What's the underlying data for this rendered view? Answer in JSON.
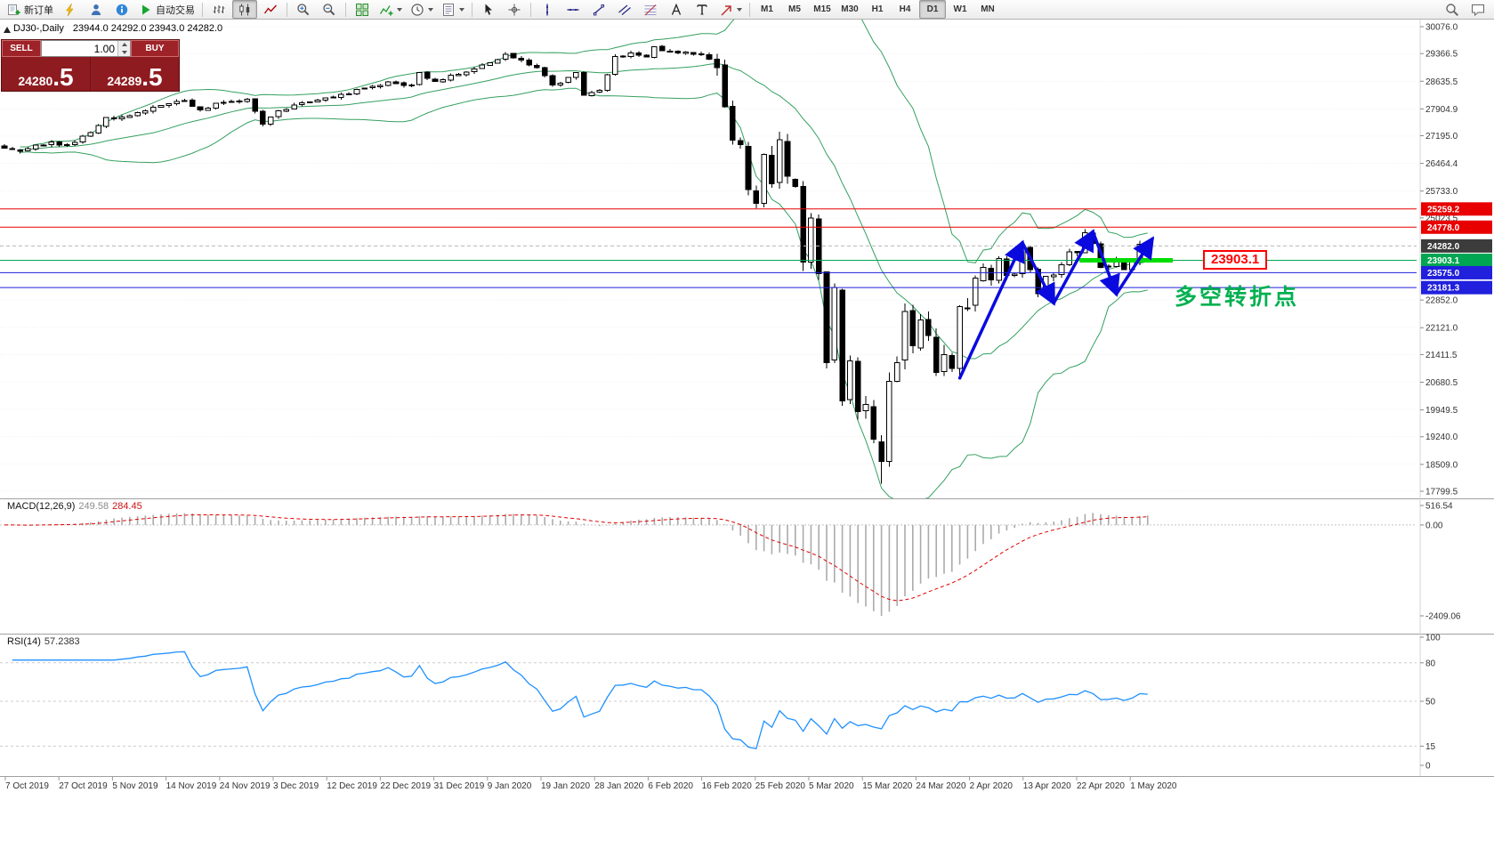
{
  "toolbar": {
    "items": [
      {
        "name": "new-order-button",
        "icon": "neworder",
        "label": "新订单"
      },
      {
        "name": "market-watch-button",
        "icon": "bolt"
      },
      {
        "name": "profile-button",
        "icon": "person"
      },
      {
        "name": "help-button",
        "icon": "info"
      },
      {
        "name": "algo-trading-button",
        "icon": "play",
        "label": "自动交易"
      },
      {
        "type": "sep"
      },
      {
        "name": "bar-chart-button",
        "icon": "bars"
      },
      {
        "name": "candle-chart-button",
        "icon": "candles",
        "active": true
      },
      {
        "name": "line-chart-button",
        "icon": "linechart"
      },
      {
        "type": "sep"
      },
      {
        "name": "zoom-in-button",
        "icon": "zoomin"
      },
      {
        "name": "zoom-out-button",
        "icon": "zoomout"
      },
      {
        "type": "sep"
      },
      {
        "name": "tile-windows-button",
        "icon": "tiles"
      },
      {
        "name": "indicators-button",
        "icon": "indicator",
        "dropdown": true
      },
      {
        "name": "period-menu-button",
        "icon": "clock",
        "dropdown": true
      },
      {
        "name": "templates-button",
        "icon": "template",
        "dropdown": true
      },
      {
        "type": "sep"
      },
      {
        "name": "cursor-button",
        "icon": "cursor"
      },
      {
        "name": "crosshair-button",
        "icon": "crosshair"
      },
      {
        "type": "sep"
      },
      {
        "name": "vertical-line-button",
        "icon": "vline"
      },
      {
        "name": "horizontal-line-button",
        "icon": "hline"
      },
      {
        "name": "trendline-button",
        "icon": "tline"
      },
      {
        "name": "channel-button",
        "icon": "channel"
      },
      {
        "name": "fibonacci-button",
        "icon": "fibo"
      },
      {
        "name": "text-button",
        "icon": "textA"
      },
      {
        "name": "label-button",
        "icon": "textT"
      },
      {
        "name": "arrows-button",
        "icon": "arrowobj",
        "dropdown": true
      },
      {
        "type": "sep"
      },
      {
        "name": "timeframe-button-m1",
        "label": "M1",
        "type": "tf"
      },
      {
        "name": "timeframe-button-m5",
        "label": "M5",
        "type": "tf"
      },
      {
        "name": "timeframe-button-m15",
        "label": "M15",
        "type": "tf"
      },
      {
        "name": "timeframe-button-m30",
        "label": "M30",
        "type": "tf"
      },
      {
        "name": "timeframe-button-h1",
        "label": "H1",
        "type": "tf"
      },
      {
        "name": "timeframe-button-h4",
        "label": "H4",
        "type": "tf"
      },
      {
        "name": "timeframe-button-d1",
        "label": "D1",
        "type": "tf",
        "active": true
      },
      {
        "name": "timeframe-button-w1",
        "label": "W1",
        "type": "tf"
      },
      {
        "name": "timeframe-button-mn",
        "label": "MN",
        "type": "tf"
      },
      {
        "type": "spacer"
      },
      {
        "name": "symbol-search-button",
        "icon": "search"
      },
      {
        "name": "chat-button",
        "icon": "chat"
      }
    ]
  },
  "chart_info": {
    "symbol_period": "DJ30-,Daily",
    "ohlc_values": "23944.0 24292.0 23943.0 24282.0"
  },
  "trade_panel": {
    "sell_label": "SELL",
    "buy_label": "BUY",
    "volume": "1.00",
    "sell_price_main": "24280",
    "sell_price_big": ".5",
    "buy_price_main": "24289",
    "buy_price_big": ".5"
  },
  "price_axis": {
    "grid_labels": [
      "30076.0",
      "29366.5",
      "28635.5",
      "27904.9",
      "27195.0",
      "26464.4",
      "25733.0",
      "25023.5",
      "22852.0",
      "22121.0",
      "21411.5",
      "20680.5",
      "19949.5",
      "19240.0",
      "18509.0",
      "17799.5"
    ],
    "boxed_labels": [
      {
        "text": "25259.2",
        "type": "red-line"
      },
      {
        "text": "24778.0",
        "type": "red-line"
      },
      {
        "text": "24282.0",
        "type": "current"
      },
      {
        "text": "23903.1",
        "type": "green-line"
      },
      {
        "text": "23575.0",
        "type": "blue-line"
      },
      {
        "text": "23181.3",
        "type": "blue-line"
      }
    ]
  },
  "annotations": {
    "level_label": "23903.1",
    "turning_point_text": "多空转折点"
  },
  "macd_panel": {
    "label": "MACD(12,26,9)",
    "value_main": "249.58",
    "value_signal": "284.45",
    "axis": [
      "516.54",
      "0.00",
      "-2409.06"
    ]
  },
  "rsi_panel": {
    "label": "RSI(14)",
    "value": "57.2383",
    "axis": [
      "100",
      "80",
      "50",
      "15",
      "0"
    ]
  },
  "time_axis": {
    "labels": [
      "7 Oct 2019",
      "27 Oct 2019",
      "5 Nov 2019",
      "14 Nov 2019",
      "24 Nov 2019",
      "3 Dec 2019",
      "12 Dec 2019",
      "22 Dec 2019",
      "31 Dec 2019",
      "9 Jan 2020",
      "19 Jan 2020",
      "28 Jan 2020",
      "6 Feb 2020",
      "16 Feb 2020",
      "25 Feb 2020",
      "5 Mar 2020",
      "15 Mar 2020",
      "24 Mar 2020",
      "2 Apr 2020",
      "13 Apr 2020",
      "22 Apr 2020",
      "1 May 2020"
    ]
  },
  "colors": {
    "bull_candle": "#ffffff",
    "bear_candle": "#000000",
    "candle_outline": "#000000",
    "bollinger": "#35a060",
    "macd_histogram": "#ababab",
    "macd_signal": "#e00000",
    "rsi_line": "#1e90ff",
    "level_red": "#e80000",
    "level_blue": "#2020dd",
    "level_green": "#00a651",
    "current_box": "#3c3c3c",
    "highlight_green": "#00dd00",
    "annotation_green": "#00b050",
    "trend_arrow_blue": "#0a0adf",
    "trade_panel_bg": "#8e1b20"
  },
  "chart_data": {
    "type": "candlestick",
    "symbol": "DJ30-",
    "period": "Daily",
    "ohlc_current": {
      "open": 23944.0,
      "high": 24292.0,
      "low": 23943.0,
      "close": 24282.0
    },
    "y_axis_top": 30076.0,
    "y_axis_bottom": 17799.5,
    "candle_count": 147,
    "seed": 13,
    "price_keyframes": [
      [
        0,
        26870
      ],
      [
        2,
        26780
      ],
      [
        4,
        26950
      ],
      [
        6,
        27030
      ],
      [
        8,
        26950
      ],
      [
        10,
        27186
      ],
      [
        12,
        27460
      ],
      [
        13,
        27681
      ],
      [
        15,
        27690
      ],
      [
        18,
        27850
      ],
      [
        21,
        28036
      ],
      [
        23,
        28120
      ],
      [
        25,
        27875
      ],
      [
        27,
        28050
      ],
      [
        29,
        28100
      ],
      [
        31,
        28160
      ],
      [
        33,
        27500
      ],
      [
        35,
        27850
      ],
      [
        37,
        28010
      ],
      [
        40,
        28130
      ],
      [
        43,
        28290
      ],
      [
        46,
        28450
      ],
      [
        49,
        28620
      ],
      [
        52,
        28540
      ],
      [
        53,
        28870
      ],
      [
        55,
        28630
      ],
      [
        58,
        28820
      ],
      [
        60,
        28960
      ],
      [
        62,
        29120
      ],
      [
        64,
        29350
      ],
      [
        66,
        29190
      ],
      [
        68,
        28990
      ],
      [
        70,
        28540
      ],
      [
        72,
        28730
      ],
      [
        73,
        28860
      ],
      [
        74,
        28260
      ],
      [
        76,
        28400
      ],
      [
        78,
        29290
      ],
      [
        80,
        29380
      ],
      [
        82,
        29280
      ],
      [
        83,
        29550
      ],
      [
        85,
        29420
      ],
      [
        87,
        29400
      ],
      [
        89,
        29350
      ],
      [
        90,
        29220
      ],
      [
        91,
        28990
      ],
      [
        92,
        27960
      ],
      [
        93,
        27080
      ],
      [
        94,
        26960
      ],
      [
        95,
        25770
      ],
      [
        96,
        25410
      ],
      [
        97,
        26700
      ],
      [
        98,
        25920
      ],
      [
        99,
        27090
      ],
      [
        100,
        26120
      ],
      [
        101,
        25860
      ],
      [
        102,
        23850
      ],
      [
        103,
        25020
      ],
      [
        104,
        23550
      ],
      [
        105,
        21200
      ],
      [
        106,
        23190
      ],
      [
        107,
        20190
      ],
      [
        108,
        21240
      ],
      [
        109,
        19900
      ],
      [
        110,
        20090
      ],
      [
        111,
        19170
      ],
      [
        112,
        18590
      ],
      [
        113,
        20700
      ],
      [
        114,
        21200
      ],
      [
        115,
        22550
      ],
      [
        116,
        21640
      ],
      [
        117,
        22330
      ],
      [
        118,
        21920
      ],
      [
        119,
        20940
      ],
      [
        120,
        21410
      ],
      [
        121,
        21050
      ],
      [
        122,
        22680
      ],
      [
        123,
        22650
      ],
      [
        124,
        23430
      ],
      [
        125,
        23720
      ],
      [
        126,
        23390
      ],
      [
        127,
        23950
      ],
      [
        128,
        23500
      ],
      [
        129,
        23540
      ],
      [
        130,
        24240
      ],
      [
        131,
        23650
      ],
      [
        132,
        23020
      ],
      [
        133,
        23480
      ],
      [
        134,
        23520
      ],
      [
        135,
        23780
      ],
      [
        136,
        24130
      ],
      [
        137,
        24100
      ],
      [
        138,
        24630
      ],
      [
        139,
        24350
      ],
      [
        140,
        23720
      ],
      [
        141,
        23750
      ],
      [
        142,
        23880
      ],
      [
        143,
        23660
      ],
      [
        144,
        23880
      ],
      [
        145,
        24330
      ],
      [
        146,
        24282
      ]
    ],
    "low_overrides": {
      "112": 18000
    },
    "levels": [
      {
        "value": 25259.2,
        "color": "red"
      },
      {
        "value": 24778.0,
        "color": "red"
      },
      {
        "value": 23903.1,
        "color": "green"
      },
      {
        "value": 23575.0,
        "color": "blue"
      },
      {
        "value": 23181.3,
        "color": "blue"
      }
    ],
    "current_price": 24282.0,
    "bollinger": {
      "period": 20,
      "deviation": 2
    },
    "macd": {
      "fast": 12,
      "slow": 26,
      "signal": 9,
      "display_max": 516.54,
      "display_min": -2409.06
    },
    "rsi": {
      "period": 14,
      "levels": [
        80,
        50,
        15
      ]
    },
    "trend_arrows": [
      [
        122,
        20790,
        130,
        24370
      ],
      [
        130,
        24370,
        134,
        22770
      ],
      [
        134,
        22770,
        139,
        24660
      ],
      [
        139,
        24660,
        142,
        23010
      ],
      [
        142,
        23010,
        146.6,
        24470
      ]
    ],
    "highlight_segment": {
      "value": 23903.1,
      "from_idx": 137.3,
      "to_idx": 149.2
    }
  }
}
